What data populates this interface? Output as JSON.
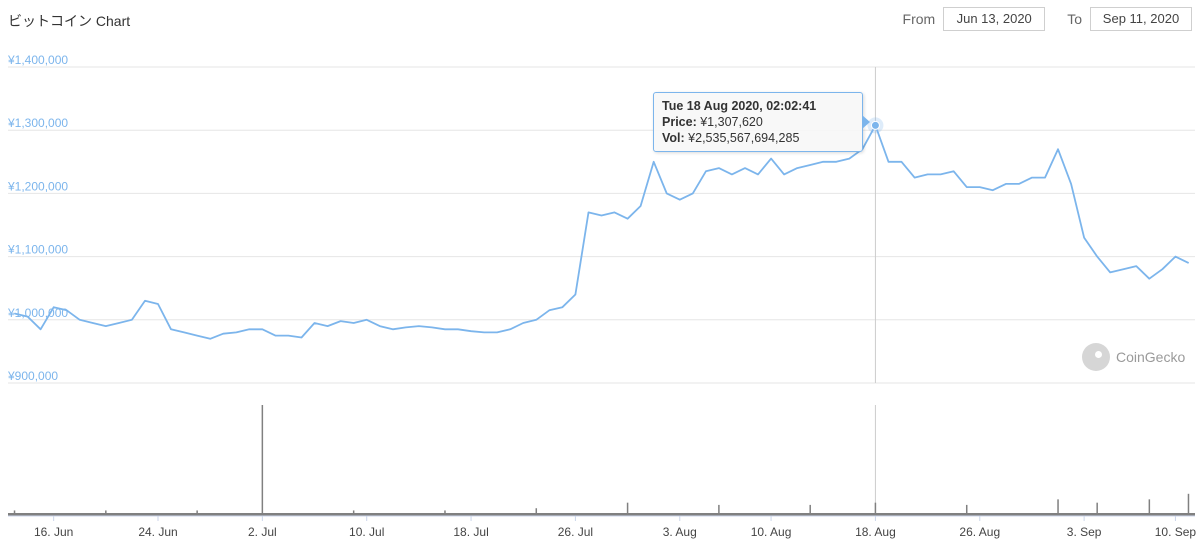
{
  "header": {
    "title": "ビットコイン Chart"
  },
  "date_range": {
    "from_label": "From",
    "from_value": "Jun 13, 2020",
    "to_label": "To",
    "to_value": "Sep 11, 2020"
  },
  "tooltip": {
    "date": "Tue 18 Aug 2020, 02:02:41",
    "price_label": "Price:",
    "price_value": "¥1,307,620",
    "vol_label": "Vol:",
    "vol_value": "¥2,535,567,694,285"
  },
  "watermark": {
    "text": "CoinGecko"
  },
  "colors": {
    "price_line": "#7cb5ec",
    "volume": "#808080",
    "axis_text": "#7cb5ec",
    "grid": "#e6e6e6"
  },
  "chart_data": {
    "type": "line",
    "title": "ビットコイン Chart",
    "y_ticks": [
      "¥900,000",
      "¥1,000,000",
      "¥1,100,000",
      "¥1,200,000",
      "¥1,300,000",
      "¥1,400,000"
    ],
    "ylim": [
      900000,
      1400000
    ],
    "x_ticks": [
      "16. Jun",
      "24. Jun",
      "2. Jul",
      "10. Jul",
      "18. Jul",
      "26. Jul",
      "3. Aug",
      "10. Aug",
      "18. Aug",
      "26. Aug",
      "3. Sep",
      "10. Sep"
    ],
    "x_range": [
      "2020-06-13",
      "2020-09-11"
    ],
    "series": [
      {
        "values": [
          [
            "2020-06-13",
            1010000
          ],
          [
            "2020-06-14",
            1005000
          ],
          [
            "2020-06-15",
            985000
          ],
          [
            "2020-06-16",
            1020000
          ],
          [
            "2020-06-17",
            1015000
          ],
          [
            "2020-06-18",
            1000000
          ],
          [
            "2020-06-19",
            995000
          ],
          [
            "2020-06-20",
            990000
          ],
          [
            "2020-06-21",
            995000
          ],
          [
            "2020-06-22",
            1000000
          ],
          [
            "2020-06-23",
            1030000
          ],
          [
            "2020-06-24",
            1025000
          ],
          [
            "2020-06-25",
            985000
          ],
          [
            "2020-06-26",
            980000
          ],
          [
            "2020-06-27",
            975000
          ],
          [
            "2020-06-28",
            970000
          ],
          [
            "2020-06-29",
            978000
          ],
          [
            "2020-06-30",
            980000
          ],
          [
            "2020-07-01",
            985000
          ],
          [
            "2020-07-02",
            985000
          ],
          [
            "2020-07-03",
            975000
          ],
          [
            "2020-07-04",
            975000
          ],
          [
            "2020-07-05",
            972000
          ],
          [
            "2020-07-06",
            995000
          ],
          [
            "2020-07-07",
            990000
          ],
          [
            "2020-07-08",
            998000
          ],
          [
            "2020-07-09",
            995000
          ],
          [
            "2020-07-10",
            1000000
          ],
          [
            "2020-07-11",
            990000
          ],
          [
            "2020-07-12",
            985000
          ],
          [
            "2020-07-13",
            988000
          ],
          [
            "2020-07-14",
            990000
          ],
          [
            "2020-07-15",
            988000
          ],
          [
            "2020-07-16",
            985000
          ],
          [
            "2020-07-17",
            985000
          ],
          [
            "2020-07-18",
            982000
          ],
          [
            "2020-07-19",
            980000
          ],
          [
            "2020-07-20",
            980000
          ],
          [
            "2020-07-21",
            985000
          ],
          [
            "2020-07-22",
            995000
          ],
          [
            "2020-07-23",
            1000000
          ],
          [
            "2020-07-24",
            1015000
          ],
          [
            "2020-07-25",
            1020000
          ],
          [
            "2020-07-26",
            1040000
          ],
          [
            "2020-07-27",
            1170000
          ],
          [
            "2020-07-28",
            1165000
          ],
          [
            "2020-07-29",
            1170000
          ],
          [
            "2020-07-30",
            1160000
          ],
          [
            "2020-07-31",
            1180000
          ],
          [
            "2020-08-01",
            1250000
          ],
          [
            "2020-08-02",
            1200000
          ],
          [
            "2020-08-03",
            1190000
          ],
          [
            "2020-08-04",
            1200000
          ],
          [
            "2020-08-05",
            1235000
          ],
          [
            "2020-08-06",
            1240000
          ],
          [
            "2020-08-07",
            1230000
          ],
          [
            "2020-08-08",
            1240000
          ],
          [
            "2020-08-09",
            1230000
          ],
          [
            "2020-08-10",
            1255000
          ],
          [
            "2020-08-11",
            1230000
          ],
          [
            "2020-08-12",
            1240000
          ],
          [
            "2020-08-13",
            1245000
          ],
          [
            "2020-08-14",
            1250000
          ],
          [
            "2020-08-15",
            1250000
          ],
          [
            "2020-08-16",
            1255000
          ],
          [
            "2020-08-17",
            1270000
          ],
          [
            "2020-08-18",
            1307620
          ],
          [
            "2020-08-19",
            1250000
          ],
          [
            "2020-08-20",
            1250000
          ],
          [
            "2020-08-21",
            1225000
          ],
          [
            "2020-08-22",
            1230000
          ],
          [
            "2020-08-23",
            1230000
          ],
          [
            "2020-08-24",
            1235000
          ],
          [
            "2020-08-25",
            1210000
          ],
          [
            "2020-08-26",
            1210000
          ],
          [
            "2020-08-27",
            1205000
          ],
          [
            "2020-08-28",
            1215000
          ],
          [
            "2020-08-29",
            1215000
          ],
          [
            "2020-08-30",
            1225000
          ],
          [
            "2020-08-31",
            1225000
          ],
          [
            "2020-09-01",
            1270000
          ],
          [
            "2020-09-02",
            1215000
          ],
          [
            "2020-09-03",
            1130000
          ],
          [
            "2020-09-04",
            1100000
          ],
          [
            "2020-09-05",
            1075000
          ],
          [
            "2020-09-06",
            1080000
          ],
          [
            "2020-09-07",
            1085000
          ],
          [
            "2020-09-08",
            1065000
          ],
          [
            "2020-09-09",
            1080000
          ],
          [
            "2020-09-10",
            1100000
          ],
          [
            "2020-09-11",
            1090000
          ]
        ]
      }
    ],
    "volume": {
      "values": [
        [
          "2020-06-13",
          0.05
        ],
        [
          "2020-06-20",
          0.05
        ],
        [
          "2020-06-27",
          0.05
        ],
        [
          "2020-07-02",
          1.0
        ],
        [
          "2020-07-09",
          0.05
        ],
        [
          "2020-07-16",
          0.05
        ],
        [
          "2020-07-23",
          0.07
        ],
        [
          "2020-07-30",
          0.12
        ],
        [
          "2020-08-06",
          0.1
        ],
        [
          "2020-08-13",
          0.1
        ],
        [
          "2020-08-18",
          0.12
        ],
        [
          "2020-08-25",
          0.1
        ],
        [
          "2020-09-01",
          0.15
        ],
        [
          "2020-09-04",
          0.12
        ],
        [
          "2020-09-08",
          0.15
        ],
        [
          "2020-09-11",
          0.2
        ]
      ]
    },
    "highlight_point": [
      "2020-08-18",
      1307620
    ],
    "grid": true,
    "legend": "none"
  }
}
